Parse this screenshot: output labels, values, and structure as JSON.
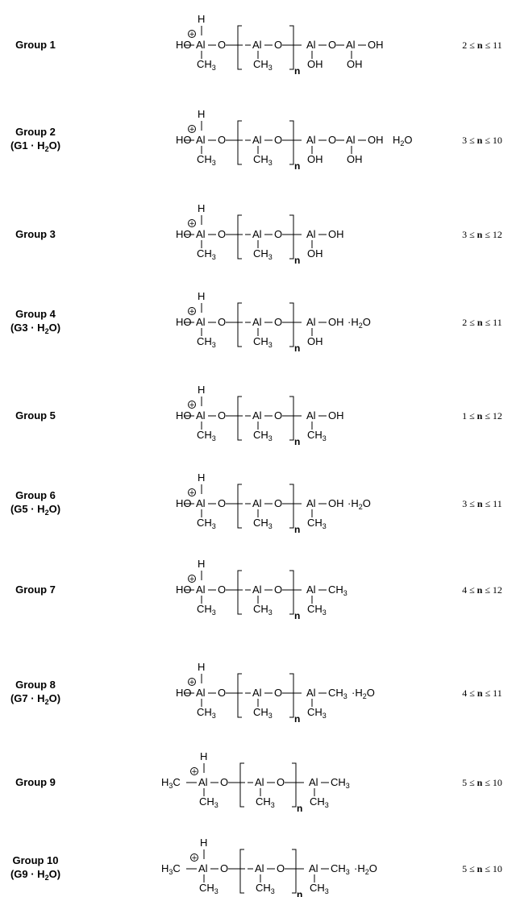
{
  "atoms": {
    "H": "H",
    "HO": "HO",
    "Al": "Al",
    "O": "O",
    "OH": "OH",
    "CH": "CH",
    "three": "3",
    "H2": "H",
    "two": "2",
    "n": "n",
    "water_O": "O",
    "dot": "·"
  },
  "groups": [
    {
      "name": "Group 1",
      "parent": "",
      "repeat_tail": "oh2",
      "water": false,
      "head": "HO",
      "range": {
        "lo": "2",
        "hi": "11"
      }
    },
    {
      "name": "Group 2",
      "parent": "(G1 · H2O)",
      "repeat_tail": "oh2",
      "water": true,
      "head": "HO",
      "range": {
        "lo": "3",
        "hi": "10"
      }
    },
    {
      "name": "Group 3",
      "parent": "",
      "repeat_tail": "oh1",
      "water": false,
      "head": "HO",
      "range": {
        "lo": "3",
        "hi": "12"
      }
    },
    {
      "name": "Group 4",
      "parent": "(G3 · H2O)",
      "repeat_tail": "oh1",
      "water": true,
      "head": "HO",
      "range": {
        "lo": "2",
        "hi": "11"
      }
    },
    {
      "name": "Group 5",
      "parent": "",
      "repeat_tail": "me_oh",
      "water": false,
      "head": "HO",
      "range": {
        "lo": "1",
        "hi": "12"
      }
    },
    {
      "name": "Group 6",
      "parent": "(G5 · H2O)",
      "repeat_tail": "me_oh",
      "water": true,
      "head": "HO",
      "range": {
        "lo": "3",
        "hi": "11"
      }
    },
    {
      "name": "Group 7",
      "parent": "",
      "repeat_tail": "me_me",
      "water": false,
      "head": "HO",
      "range": {
        "lo": "4",
        "hi": "12"
      }
    },
    {
      "name": "Group 8",
      "parent": "(G7 · H2O)",
      "repeat_tail": "me_me",
      "water": true,
      "head": "HO",
      "range": {
        "lo": "4",
        "hi": "11"
      }
    },
    {
      "name": "Group 9",
      "parent": "",
      "repeat_tail": "me_me",
      "water": false,
      "head": "H3C",
      "range": {
        "lo": "5",
        "hi": "10"
      }
    },
    {
      "name": "Group 10",
      "parent": "(G9 · H2O)",
      "repeat_tail": "me_me",
      "water": true,
      "head": "H3C",
      "range": {
        "lo": "5",
        "hi": "10"
      }
    }
  ],
  "range_text": {
    "le": "≤",
    "n": "n"
  }
}
